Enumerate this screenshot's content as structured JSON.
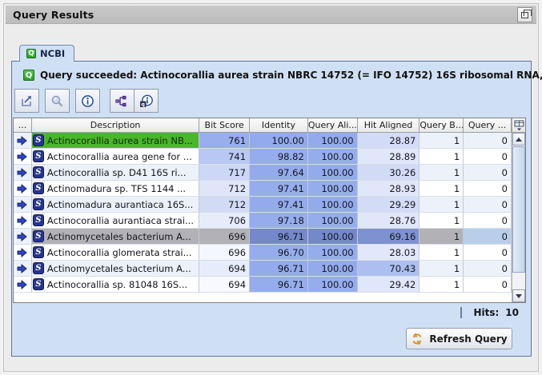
{
  "window": {
    "title": "Query Results"
  },
  "tab": {
    "label": "NCBI",
    "icon": "q-badge"
  },
  "status": {
    "icon": "q-badge",
    "text": "Query succeeded: Actinocorallia aurea strain NBRC 14752 (= IFO 14752) 16S ribosomal RNA, pa..."
  },
  "toolbar": {
    "buttons": [
      {
        "name": "export-results"
      },
      {
        "name": "search"
      },
      {
        "name": "details-info"
      },
      {
        "name": "alignment-tree"
      },
      {
        "name": "query-info"
      }
    ]
  },
  "table": {
    "columns": [
      "...",
      "Description",
      "Bit Score",
      "Identity",
      "Query Ali...",
      "Hit Aligned",
      "Query B...",
      "Query ..."
    ],
    "rows": [
      {
        "description": "Actinocorallia aurea strain NB...",
        "bit_score": "761",
        "identity": "100.00",
        "query_aligned": "100.00",
        "hit_aligned": "28.87",
        "query_b": "1",
        "query": "0",
        "description_highlight": "green",
        "selected": false
      },
      {
        "description": "Actinocorallia aurea gene for ...",
        "bit_score": "741",
        "identity": "98.82",
        "query_aligned": "100.00",
        "hit_aligned": "28.89",
        "query_b": "1",
        "query": "0",
        "selected": false
      },
      {
        "description": "Actinocorallia sp. D41 16S ri...",
        "bit_score": "717",
        "identity": "97.64",
        "query_aligned": "100.00",
        "hit_aligned": "30.26",
        "query_b": "1",
        "query": "0",
        "selected": false
      },
      {
        "description": "Actinomadura sp. TFS 1144 ...",
        "bit_score": "712",
        "identity": "97.41",
        "query_aligned": "100.00",
        "hit_aligned": "28.93",
        "query_b": "1",
        "query": "0",
        "selected": false
      },
      {
        "description": "Actinomadura aurantiaca 16S...",
        "bit_score": "712",
        "identity": "97.41",
        "query_aligned": "100.00",
        "hit_aligned": "29.29",
        "query_b": "1",
        "query": "0",
        "selected": false
      },
      {
        "description": "Actinocorallia aurantiaca strai...",
        "bit_score": "706",
        "identity": "97.18",
        "query_aligned": "100.00",
        "hit_aligned": "28.76",
        "query_b": "1",
        "query": "0",
        "selected": false
      },
      {
        "description": "Actinomycetales bacterium A...",
        "bit_score": "696",
        "identity": "96.71",
        "query_aligned": "100.00",
        "hit_aligned": "69.16",
        "query_b": "1",
        "query": "0",
        "selected": true
      },
      {
        "description": "Actinocorallia glomerata strai...",
        "bit_score": "696",
        "identity": "96.70",
        "query_aligned": "100.00",
        "hit_aligned": "28.03",
        "query_b": "1",
        "query": "0",
        "selected": false
      },
      {
        "description": "Actinomycetales bacterium A...",
        "bit_score": "694",
        "identity": "96.71",
        "query_aligned": "100.00",
        "hit_aligned": "70.43",
        "query_b": "1",
        "query": "0",
        "selected": false
      },
      {
        "description": "Actinocorallia sp. 81048 16S...",
        "bit_score": "694",
        "identity": "96.71",
        "query_aligned": "100.00",
        "hit_aligned": "29.42",
        "query_b": "1",
        "query": "0",
        "selected": false
      }
    ]
  },
  "hits": {
    "label": "Hits:",
    "value": "10"
  },
  "refresh": {
    "label": "Refresh Query"
  },
  "icons": {
    "q_letter": "Q"
  },
  "colors": {
    "panel_blue": "#cfe0f4",
    "heat_blue": "#7c98e9",
    "selection_green": "#4bb62a",
    "selection_gray": "#b2b2b6",
    "selection_blue_dark": "#7488cb",
    "selection_query_cell": "#b9cfe9"
  }
}
